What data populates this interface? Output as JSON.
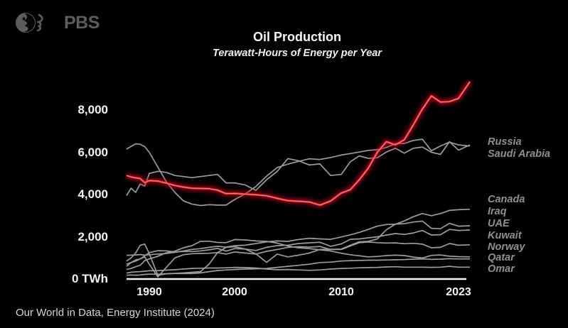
{
  "branding": {
    "logo_text": "PBS"
  },
  "header": {
    "title": "Oil Production",
    "subtitle": "Terawatt-Hours of Energy per Year"
  },
  "footer": {
    "source": "Our World in Data, Energy Institute (2024)"
  },
  "chart_data": {
    "type": "line",
    "title": "Oil Production",
    "subtitle": "Terawatt-Hours of Energy per Year",
    "unit": "TWh",
    "grid": false,
    "background": "#000000",
    "line_color_default": "#9c9c9c",
    "highlight_color": "#ff3340",
    "axis_color": "#f2f2f2",
    "ylim": [
      0,
      9800
    ],
    "x_range": [
      1985,
      2024
    ],
    "legend_position": "right-edge-labels",
    "years": [
      1985,
      1986,
      1987,
      1988,
      1989,
      1990,
      1991,
      1992,
      1993,
      1994,
      1995,
      1996,
      1997,
      1998,
      1999,
      2000,
      2001,
      2002,
      2003,
      2004,
      2005,
      2006,
      2007,
      2008,
      2009,
      2010,
      2011,
      2012,
      2013,
      2014,
      2015,
      2016,
      2017,
      2018,
      2019,
      2020,
      2021,
      2022,
      2023,
      2024
    ],
    "x_ticks": [
      {
        "year": 1990,
        "label": "1990"
      },
      {
        "year": 2000,
        "label": "2000"
      },
      {
        "year": 2010,
        "label": "2010"
      },
      {
        "year": 2023,
        "label": "2023"
      }
    ],
    "y_ticks": [
      {
        "value": 8000,
        "label": "8,000"
      },
      {
        "value": 6000,
        "label": "6,000"
      },
      {
        "value": 4000,
        "label": "4,000"
      },
      {
        "value": 2000,
        "label": "2,000"
      },
      {
        "value": 0,
        "label": "0 TWh"
      }
    ],
    "series": [
      {
        "key": "red-highlight",
        "label": "",
        "highlight": true,
        "color": "#ff3340",
        "values": [
          4900,
          4830,
          4790,
          4760,
          4560,
          4660,
          4640,
          4540,
          4430,
          4350,
          4300,
          4290,
          4280,
          4210,
          4040,
          4050,
          4020,
          3990,
          3940,
          3820,
          3710,
          3680,
          3650,
          3500,
          3690,
          4070,
          4230,
          4700,
          5250,
          6000,
          6500,
          6350,
          6600,
          7300,
          8050,
          8670,
          8380,
          8400,
          8550,
          9340
        ]
      },
      {
        "key": "russia",
        "label": "Russia",
        "color": "#9c9c9c",
        "values": [
          6150,
          6280,
          6400,
          6380,
          6270,
          6000,
          5300,
          4600,
          4100,
          3700,
          3550,
          3480,
          3520,
          3500,
          3500,
          3760,
          4030,
          4380,
          4870,
          5280,
          5440,
          5570,
          5690,
          5660,
          5750,
          5870,
          5940,
          6010,
          6090,
          6120,
          6230,
          6400,
          6420,
          6560,
          6620,
          6070,
          6300,
          6480,
          6350,
          6300
        ]
      },
      {
        "key": "saudi-arabia",
        "label": "Saudi Arabia",
        "color": "#9c9c9c",
        "values": [
          3950,
          4300,
          4100,
          4500,
          4400,
          5000,
          5100,
          5050,
          4900,
          4850,
          4800,
          4850,
          4900,
          4950,
          4550,
          4550,
          4450,
          4200,
          4700,
          5100,
          5700,
          5600,
          5400,
          5450,
          4900,
          4950,
          5550,
          5830,
          5710,
          5740,
          6010,
          6190,
          5960,
          6190,
          6250,
          6000,
          5900,
          6500,
          6100,
          6350
        ]
      },
      {
        "key": "canada",
        "label": "Canada",
        "color": "#9c9c9c",
        "values": [
          1120,
          1130,
          1140,
          1160,
          1130,
          1150,
          1180,
          1210,
          1260,
          1330,
          1400,
          1440,
          1500,
          1550,
          1510,
          1580,
          1600,
          1680,
          1760,
          1800,
          1780,
          1870,
          1930,
          1900,
          1880,
          1990,
          2090,
          2210,
          2350,
          2500,
          2580,
          2590,
          2750,
          2950,
          3100,
          3000,
          3100,
          3250,
          3280,
          3300
        ]
      },
      {
        "key": "iraq",
        "label": "Iraq",
        "color": "#9c9c9c",
        "values": [
          850,
          1000,
          1230,
          1600,
          1650,
          1200,
          180,
          250,
          270,
          290,
          320,
          350,
          700,
          1250,
          1500,
          1530,
          1420,
          1190,
          790,
          1180,
          1050,
          1130,
          1230,
          1400,
          1410,
          1420,
          1600,
          1760,
          1780,
          1900,
          2330,
          2600,
          2620,
          2700,
          2740,
          2400,
          2380,
          2640,
          2500,
          2520
        ]
      },
      {
        "key": "uae",
        "label": "UAE",
        "color": "#9c9c9c",
        "values": [
          700,
          780,
          900,
          950,
          1100,
          1250,
          1340,
          1330,
          1280,
          1300,
          1300,
          1330,
          1380,
          1450,
          1320,
          1440,
          1420,
          1350,
          1500,
          1580,
          1600,
          1680,
          1710,
          1740,
          1550,
          1660,
          1880,
          1900,
          1950,
          2000,
          2080,
          2150,
          2110,
          2180,
          2300,
          2080,
          2100,
          2350,
          2300,
          2320
        ]
      },
      {
        "key": "kuwait",
        "label": "Kuwait",
        "color": "#9c9c9c",
        "values": [
          600,
          780,
          850,
          950,
          1050,
          700,
          100,
          550,
          1000,
          1150,
          1200,
          1210,
          1220,
          1250,
          1180,
          1280,
          1230,
          1180,
          1310,
          1400,
          1500,
          1530,
          1510,
          1540,
          1400,
          1400,
          1560,
          1720,
          1750,
          1720,
          1700,
          1710,
          1670,
          1690,
          1650,
          1480,
          1500,
          1680,
          1600,
          1620
        ]
      },
      {
        "key": "norway",
        "label": "Norway",
        "color": "#9c9c9c",
        "values": [
          450,
          500,
          580,
          650,
          870,
          950,
          1080,
          1240,
          1320,
          1480,
          1580,
          1780,
          1790,
          1730,
          1720,
          1870,
          1850,
          1800,
          1780,
          1700,
          1560,
          1480,
          1440,
          1380,
          1330,
          1220,
          1150,
          1100,
          1050,
          1070,
          1110,
          1130,
          1110,
          1040,
          990,
          1120,
          1140,
          1080,
          1060,
          1050
        ]
      },
      {
        "key": "qatar",
        "label": "Qatar",
        "color": "#9c9c9c",
        "values": [
          180,
          190,
          180,
          190,
          220,
          230,
          230,
          250,
          260,
          260,
          260,
          290,
          350,
          400,
          430,
          450,
          470,
          480,
          500,
          550,
          600,
          650,
          700,
          780,
          800,
          850,
          870,
          880,
          890,
          890,
          900,
          910,
          920,
          940,
          950,
          930,
          940,
          960,
          950,
          950
        ]
      },
      {
        "key": "omar",
        "label": "Omar",
        "color": "#9c9c9c",
        "values": [
          280,
          320,
          340,
          350,
          370,
          390,
          400,
          420,
          440,
          470,
          500,
          510,
          520,
          520,
          530,
          550,
          540,
          520,
          470,
          440,
          450,
          430,
          410,
          430,
          470,
          500,
          510,
          530,
          540,
          550,
          570,
          580,
          560,
          560,
          560,
          550,
          560,
          600,
          560,
          560
        ]
      }
    ]
  }
}
